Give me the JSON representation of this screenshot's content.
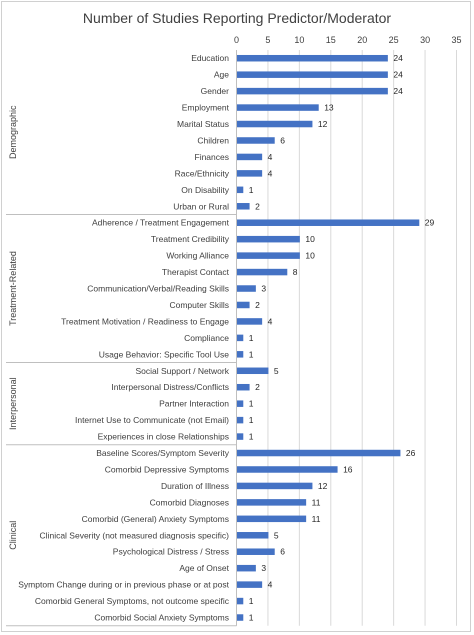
{
  "chart_data": {
    "type": "bar",
    "orientation": "horizontal",
    "title": "Number of Studies Reporting Predictor/Moderator",
    "xlim": [
      0,
      35
    ],
    "xticks": [
      0,
      5,
      10,
      15,
      20,
      25,
      30,
      35
    ],
    "grid": true,
    "bar_color": "#4472c4",
    "groups": [
      {
        "name": "Demographic",
        "categories": [
          "Education",
          "Age",
          "Gender",
          "Employment",
          "Marital Status",
          "Children",
          "Finances",
          "Race/Ethnicity",
          "On Disability",
          "Urban or Rural"
        ],
        "values": [
          24,
          24,
          24,
          13,
          12,
          6,
          4,
          4,
          1,
          2
        ]
      },
      {
        "name": "Treatment-Related",
        "categories": [
          "Adherence / Treatment Engagement",
          "Treatment Credibility",
          "Working Alliance",
          "Therapist Contact",
          "Communication/Verbal/Reading Skills",
          "Computer Skills",
          "Treatment Motivation / Readiness to Engage",
          "Compliance",
          "Usage Behavior: Specific Tool Use"
        ],
        "values": [
          29,
          10,
          10,
          8,
          3,
          2,
          4,
          1,
          1
        ]
      },
      {
        "name": "Interpersonal",
        "categories": [
          "Social Support / Network",
          "Interpersonal Distress/Conflicts",
          "Partner Interaction",
          "Internet Use to Communicate (not Email)",
          "Experiences in close Relationships"
        ],
        "values": [
          5,
          2,
          1,
          1,
          1
        ]
      },
      {
        "name": "Clinical",
        "categories": [
          "Baseline Scores/Symptom Severity",
          "Comorbid Depressive Symptoms",
          "Duration of Illness",
          "Comorbid Diagnoses",
          "Comorbid (General) Anxiety Symptoms",
          "Clinical Severity (not measured diagnosis specific)",
          "Psychological Distress / Stress",
          "Age of Onset",
          "Symptom Change during or in previous phase or at post",
          "Comorbid General Symptoms, not outcome specific",
          "Comorbid Social Anxiety Symptoms"
        ],
        "values": [
          26,
          16,
          12,
          11,
          11,
          5,
          6,
          3,
          4,
          1,
          1
        ]
      }
    ]
  }
}
